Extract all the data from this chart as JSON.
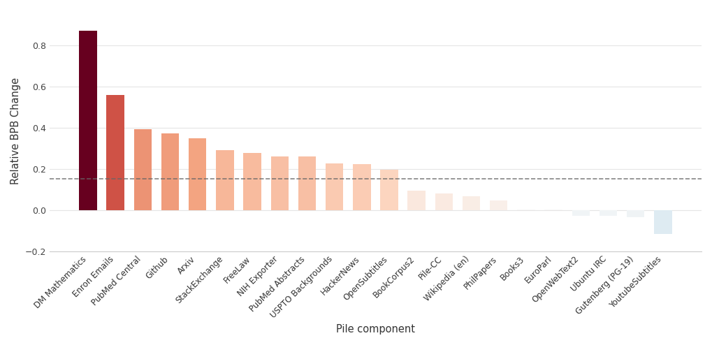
{
  "categories": [
    "DM Mathematics",
    "Enron Emails",
    "PubMed Central",
    "Github",
    "Arxiv",
    "StackExchange",
    "FreeLaw",
    "NIH Exporter",
    "PubMed Abstracts",
    "USPTO Backgrounds",
    "HackerNews",
    "OpenSubtitles",
    "BookCorpus2",
    "Pile-CC",
    "Wikipedia (en)",
    "PhilPapers",
    "Books3",
    "EuroParl",
    "OpenWebText2",
    "Ubuntu IRC",
    "Gutenberg (PG-19)",
    "YoutubeSubtitles"
  ],
  "values": [
    0.872,
    0.558,
    0.393,
    0.373,
    0.348,
    0.292,
    0.278,
    0.261,
    0.26,
    0.228,
    0.222,
    0.197,
    0.093,
    0.081,
    0.068,
    0.048,
    0.002,
    0.001,
    -0.028,
    -0.028,
    -0.035,
    -0.115
  ],
  "dashed_line_y": 0.153,
  "ylabel": "Relative BPB Change",
  "xlabel": "Pile component",
  "background_color": "#ffffff",
  "grid_color": "#e5e5e5",
  "dashed_line_color": "#666666",
  "ylim_min": -0.2,
  "ylim_max": 0.97
}
